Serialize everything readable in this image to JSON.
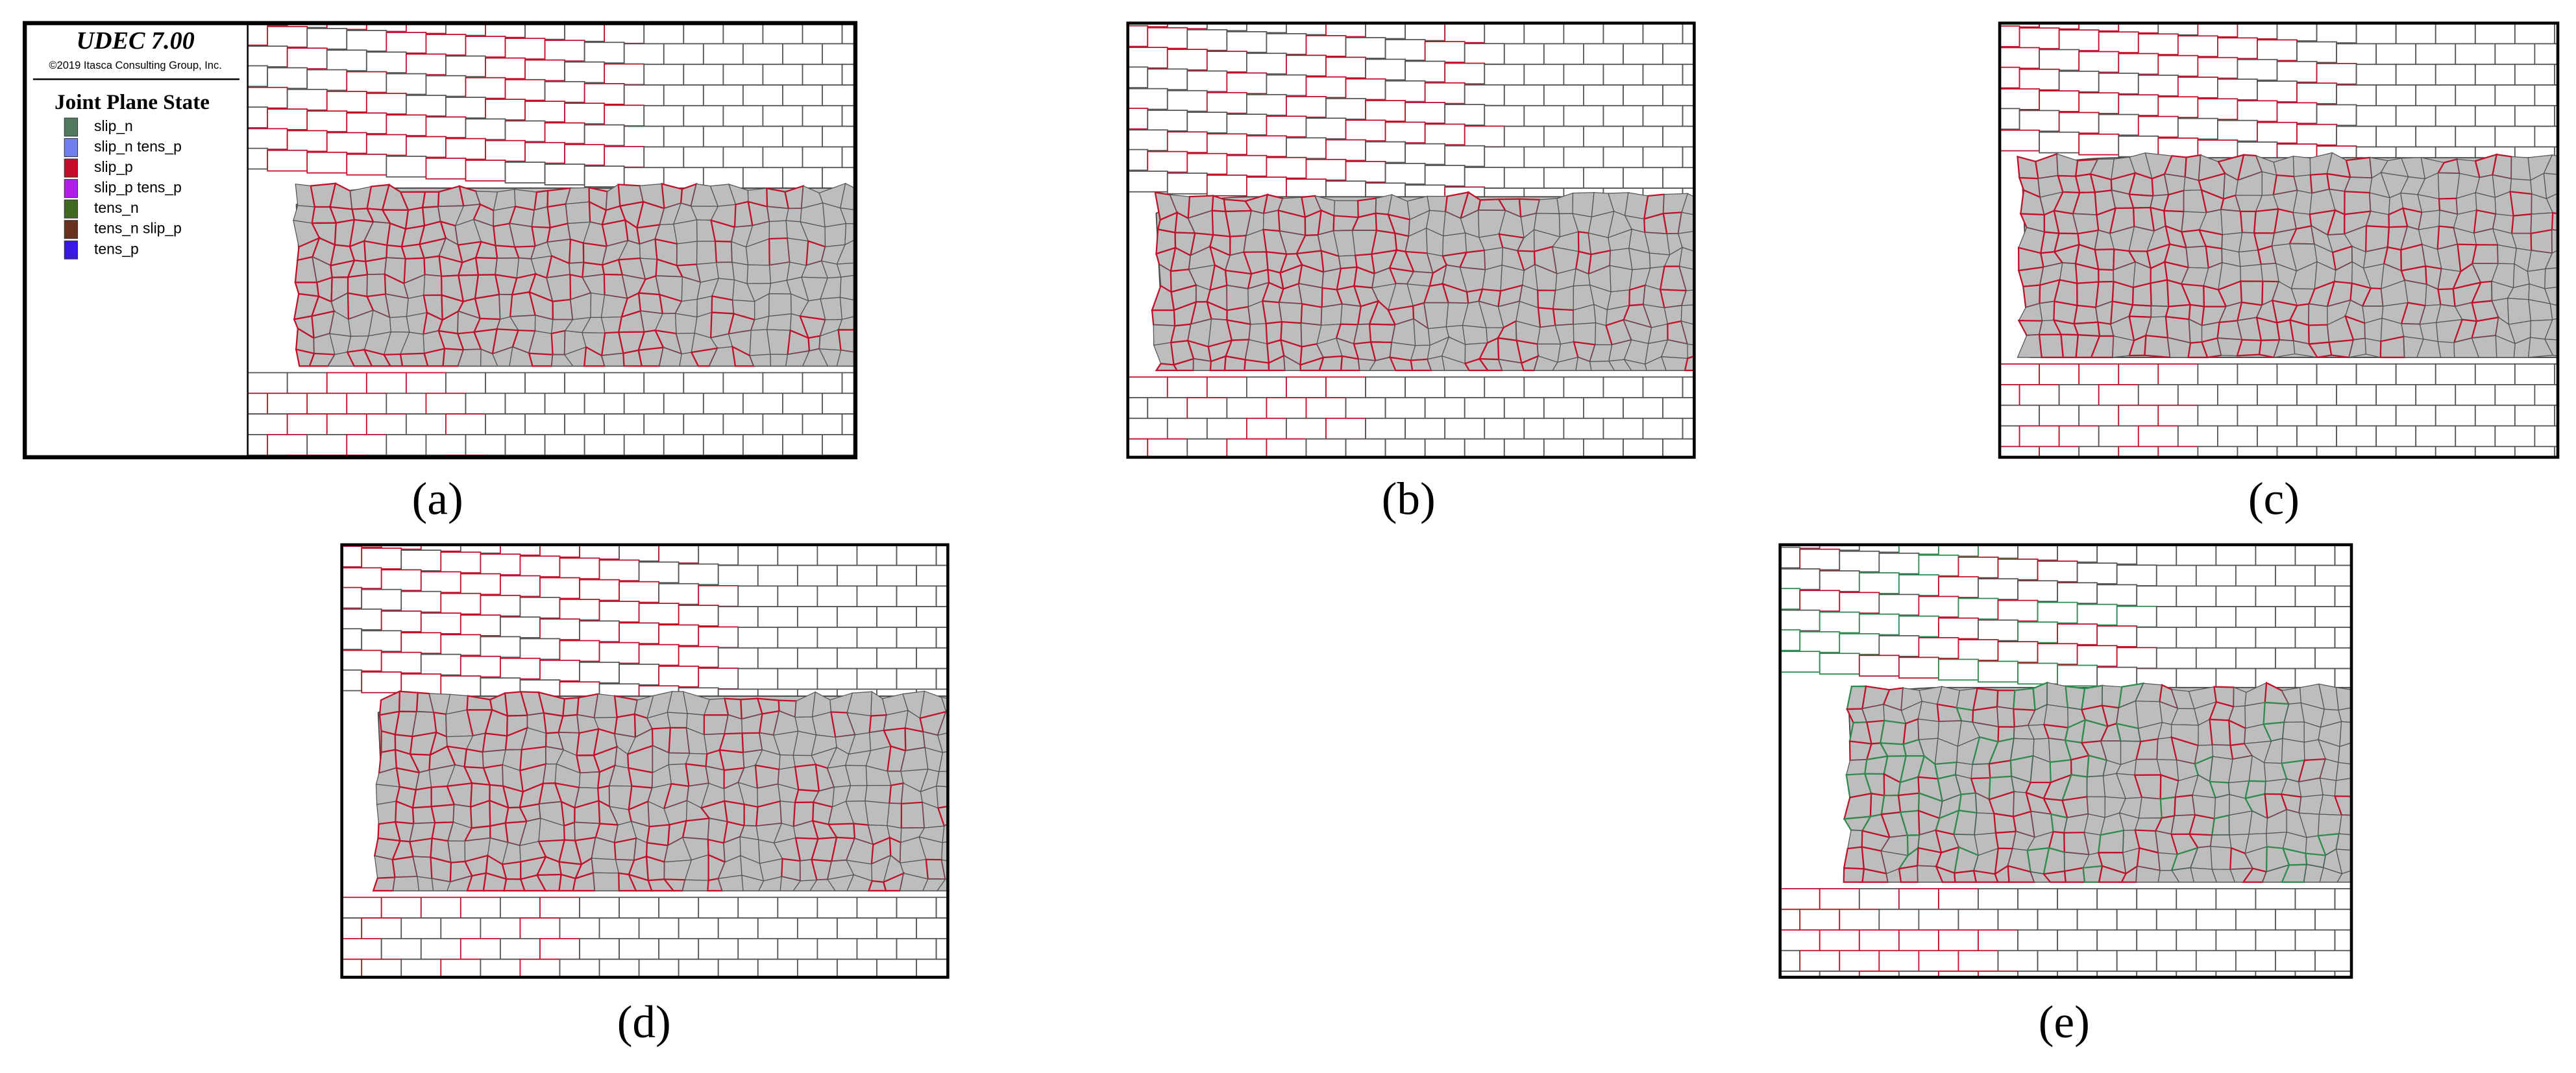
{
  "legend": {
    "software": "UDEC 7.00",
    "copyright": "©2019 Itasca Consulting Group, Inc.",
    "title": "Joint Plane State",
    "items": [
      {
        "label": "slip_n",
        "color": "#4f7a5e"
      },
      {
        "label": "slip_n tens_p",
        "color": "#6f7ff0"
      },
      {
        "label": "slip_p",
        "color": "#c0102a"
      },
      {
        "label": "slip_p tens_p",
        "color": "#b01ee8"
      },
      {
        "label": "tens_n",
        "color": "#3f6a20"
      },
      {
        "label": "tens_n slip_p",
        "color": "#6a3020"
      },
      {
        "label": "tens_p",
        "color": "#3a18e0"
      }
    ]
  },
  "panels": [
    {
      "label": "(a)"
    },
    {
      "label": "(b)"
    },
    {
      "label": "(c)"
    },
    {
      "label": "(d)"
    },
    {
      "label": "(e)"
    }
  ]
}
